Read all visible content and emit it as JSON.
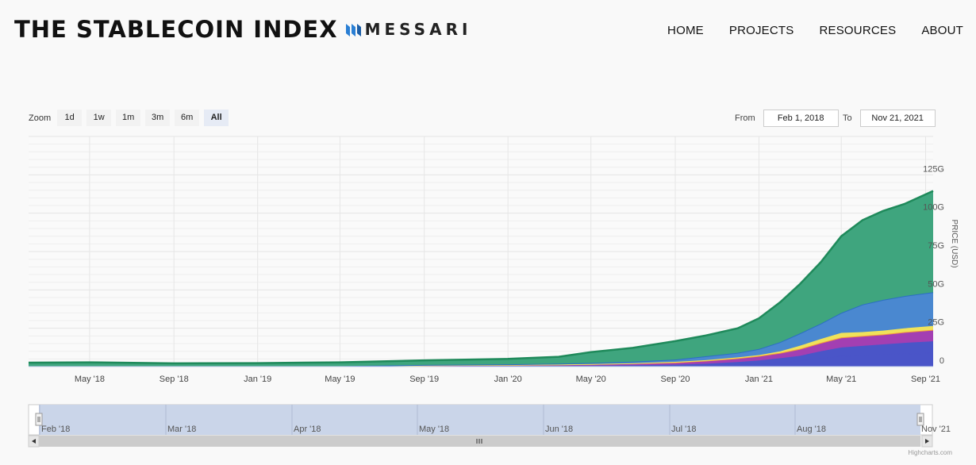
{
  "header": {
    "title": "THE STABLECOIN INDEX",
    "logo_text": "MESSARI",
    "nav": [
      "HOME",
      "PROJECTS",
      "RESOURCES",
      "ABOUT"
    ]
  },
  "zoom": {
    "label": "Zoom",
    "buttons": [
      "1d",
      "1w",
      "1m",
      "3m",
      "6m",
      "All"
    ],
    "active": "All"
  },
  "range": {
    "from_label": "From",
    "from_value": "Feb 1, 2018",
    "to_label": "To",
    "to_value": "Nov 21, 2021"
  },
  "credits": "Highcharts.com",
  "colors": {
    "usdt": "#1f8a5b",
    "usdt_fill": "#3fa57e",
    "usdc": "#2b6fc3",
    "usdc_fill": "#4a88d0",
    "busd": "#f0e25a",
    "dai": "#f59a3c",
    "ust": "#a33fb2",
    "other": "#4a55c8",
    "navigator_fill": "#c7d3e8",
    "navigator_handle": "#f2f2f2"
  },
  "chart_data": {
    "type": "area",
    "stacked": true,
    "ylabel": "PRICE (USD)",
    "y_ticks": [
      "0",
      "25G",
      "50G",
      "75G",
      "100G",
      "125G"
    ],
    "ylim": [
      0,
      150
    ],
    "xlim": [
      "2018-02-01",
      "2021-09-12"
    ],
    "x_ticks": [
      "May '18",
      "Sep '18",
      "Jan '19",
      "May '19",
      "Sep '19",
      "Jan '20",
      "May '20",
      "Sep '20",
      "Jan '21",
      "May '21",
      "Sep '21"
    ],
    "x_tick_dates": [
      "2018-05-01",
      "2018-09-01",
      "2019-01-01",
      "2019-05-01",
      "2019-09-01",
      "2020-01-01",
      "2020-05-01",
      "2020-09-01",
      "2021-01-01",
      "2021-05-01",
      "2021-09-01"
    ],
    "x": [
      "2018-02-01",
      "2018-05-01",
      "2018-09-01",
      "2019-01-01",
      "2019-05-01",
      "2019-09-01",
      "2020-01-01",
      "2020-03-15",
      "2020-05-01",
      "2020-07-01",
      "2020-09-01",
      "2020-10-15",
      "2020-12-01",
      "2021-01-01",
      "2021-02-01",
      "2021-03-01",
      "2021-04-01",
      "2021-05-01",
      "2021-06-01",
      "2021-07-01",
      "2021-08-01",
      "2021-09-12"
    ],
    "series": [
      {
        "values": [
          0.3,
          0.3,
          0.3,
          0.3,
          0.3,
          0.3,
          0.3,
          0.3,
          0.3,
          0.4,
          0.6,
          0.9,
          1.5,
          2,
          3,
          4,
          5.5,
          7,
          7.5,
          8,
          8.5,
          9
        ]
      },
      {
        "values": [
          0,
          0,
          0,
          0,
          0,
          0.5,
          0.7,
          0.8,
          0.9,
          1,
          1.2,
          1.5,
          2,
          2.5,
          3,
          3.5,
          5,
          6,
          6.5,
          7,
          7.5,
          8
        ]
      },
      {
        "values": [
          0,
          0,
          0,
          0,
          0,
          0.1,
          0.2,
          0.3,
          0.5,
          0.8,
          1,
          1.5,
          2,
          2.5,
          3,
          4,
          5,
          6,
          6,
          6,
          6.5,
          7
        ]
      },
      {
        "values": [
          0,
          0,
          0,
          0,
          0,
          0,
          0,
          0,
          0,
          0,
          0.3,
          0.3,
          0.5,
          0.5,
          1,
          2,
          2.5,
          3,
          2.5,
          2.5,
          2.5,
          2.5
        ]
      },
      {
        "values": [
          0,
          0,
          0,
          0,
          0,
          0.2,
          0.3,
          0.5,
          0.7,
          1,
          1.5,
          2.5,
          3,
          4,
          6,
          8,
          10,
          13,
          18,
          20,
          21,
          22
        ]
      },
      {
        "values": [
          2.3,
          2.5,
          1.8,
          2.0,
          2.5,
          3.0,
          3.5,
          4.5,
          7.0,
          9.0,
          12.0,
          13.5,
          16.0,
          20.0,
          26.0,
          32.0,
          40.0,
          50.0,
          55.0,
          58.0,
          60.0,
          66.0
        ]
      }
    ]
  },
  "navigator": {
    "x_ticks": [
      "Feb '18",
      "Mar '18",
      "Apr '18",
      "May '18",
      "Jun '18",
      "Jul '18",
      "Aug '18",
      "Nov '21"
    ]
  }
}
